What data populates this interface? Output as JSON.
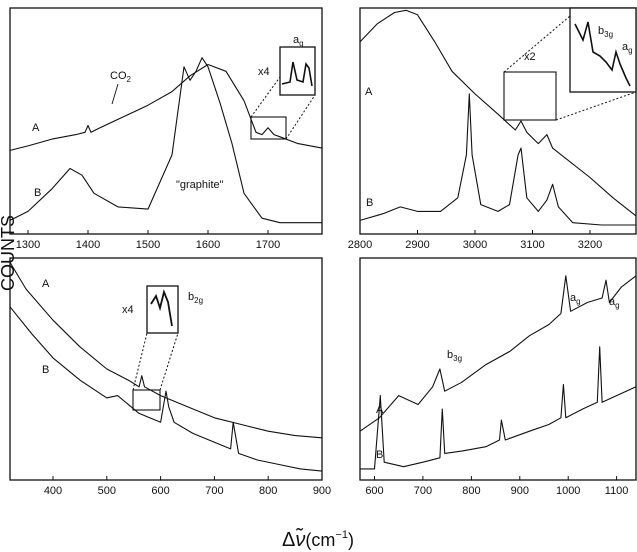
{
  "figure": {
    "ylabel": "COUNTS",
    "xlabel_prefix": "Δ",
    "xlabel_symbol": "ν̃",
    "xlabel_units": "(cm",
    "xlabel_sup": "−1",
    "xlabel_close": ")"
  },
  "chart_data": [
    {
      "type": "line",
      "xlim": [
        1270,
        1790
      ],
      "ticks": [
        1300,
        1400,
        1500,
        1600,
        1700
      ],
      "tick_labels": [
        "1300",
        "1400",
        "1500",
        "1600",
        "1700"
      ],
      "series": [
        {
          "label": "A",
          "x": [
            1270,
            1300,
            1340,
            1380,
            1395,
            1400,
            1405,
            1420,
            1460,
            1500,
            1540,
            1570,
            1600,
            1630,
            1660,
            1680,
            1690,
            1700,
            1710,
            1720,
            1750,
            1790
          ],
          "y": [
            0.37,
            0.39,
            0.42,
            0.44,
            0.45,
            0.48,
            0.45,
            0.47,
            0.52,
            0.57,
            0.63,
            0.7,
            0.75,
            0.72,
            0.59,
            0.45,
            0.44,
            0.47,
            0.44,
            0.43,
            0.4,
            0.38
          ]
        },
        {
          "label": "B",
          "x": [
            1270,
            1300,
            1340,
            1370,
            1390,
            1410,
            1450,
            1500,
            1540,
            1560,
            1570,
            1580,
            1590,
            1600,
            1620,
            1640,
            1660,
            1690,
            1720,
            1790
          ],
          "y": [
            0.06,
            0.1,
            0.2,
            0.29,
            0.26,
            0.18,
            0.12,
            0.11,
            0.35,
            0.74,
            0.68,
            0.72,
            0.78,
            0.74,
            0.58,
            0.4,
            0.18,
            0.07,
            0.05,
            0.05
          ]
        }
      ],
      "annotations": [
        {
          "text": "CO",
          "sub": "2"
        },
        {
          "text": "x4"
        },
        {
          "text": "a",
          "sub": "g"
        },
        {
          "text": "\"graphite\""
        }
      ]
    },
    {
      "type": "line",
      "xlim": [
        2800,
        3280
      ],
      "ticks": [
        2800,
        2900,
        3000,
        3100,
        3200
      ],
      "tick_labels": [
        "2800",
        "2900",
        "3000",
        "3100",
        "3200"
      ],
      "series": [
        {
          "label": "A",
          "x": [
            2800,
            2830,
            2860,
            2880,
            2900,
            2930,
            2960,
            3000,
            3040,
            3070,
            3080,
            3090,
            3110,
            3125,
            3135,
            3150,
            3200,
            3240,
            3280
          ],
          "y": [
            0.85,
            0.93,
            0.98,
            0.99,
            0.97,
            0.85,
            0.72,
            0.62,
            0.53,
            0.46,
            0.5,
            0.45,
            0.4,
            0.44,
            0.38,
            0.35,
            0.25,
            0.16,
            0.08
          ]
        },
        {
          "label": "B",
          "x": [
            2800,
            2840,
            2870,
            2900,
            2940,
            2970,
            2985,
            2990,
            2995,
            3010,
            3040,
            3060,
            3075,
            3080,
            3090,
            3110,
            3125,
            3135,
            3145,
            3170,
            3220,
            3280
          ],
          "y": [
            0.06,
            0.09,
            0.12,
            0.1,
            0.1,
            0.16,
            0.35,
            0.62,
            0.35,
            0.13,
            0.1,
            0.13,
            0.35,
            0.38,
            0.16,
            0.1,
            0.15,
            0.22,
            0.12,
            0.05,
            0.04,
            0.04
          ]
        }
      ],
      "annotations": [
        {
          "text": "x2"
        },
        {
          "text": "b",
          "sub": "3g"
        },
        {
          "text": "a",
          "sub": "g"
        }
      ]
    },
    {
      "type": "line",
      "xlim": [
        320,
        900
      ],
      "ticks": [
        400,
        500,
        600,
        700,
        800,
        900
      ],
      "tick_labels": [
        "400",
        "500",
        "600",
        "700",
        "800",
        "900"
      ],
      "series": [
        {
          "label": "A",
          "x": [
            320,
            350,
            400,
            450,
            500,
            540,
            560,
            565,
            570,
            600,
            650,
            700,
            750,
            800,
            850,
            900
          ],
          "y": [
            0.98,
            0.86,
            0.72,
            0.6,
            0.5,
            0.45,
            0.42,
            0.47,
            0.42,
            0.38,
            0.33,
            0.28,
            0.25,
            0.22,
            0.2,
            0.19
          ]
        },
        {
          "label": "B",
          "x": [
            320,
            360,
            400,
            450,
            500,
            520,
            560,
            600,
            610,
            615,
            625,
            660,
            700,
            730,
            735,
            745,
            780,
            820,
            860,
            900
          ],
          "y": [
            0.78,
            0.66,
            0.55,
            0.45,
            0.37,
            0.38,
            0.3,
            0.26,
            0.4,
            0.33,
            0.26,
            0.21,
            0.17,
            0.14,
            0.26,
            0.12,
            0.09,
            0.07,
            0.05,
            0.04
          ]
        }
      ],
      "annotations": [
        {
          "text": "x4"
        },
        {
          "text": "b",
          "sub": "2g"
        }
      ]
    },
    {
      "type": "line",
      "xlim": [
        570,
        1140
      ],
      "ticks": [
        600,
        700,
        800,
        900,
        1000,
        1100
      ],
      "tick_labels": [
        "600",
        "700",
        "800",
        "900",
        "1000",
        "1100"
      ],
      "series": [
        {
          "label": "A",
          "x": [
            570,
            610,
            650,
            690,
            720,
            735,
            745,
            780,
            830,
            880,
            920,
            960,
            985,
            995,
            1005,
            1040,
            1070,
            1078,
            1085,
            1110,
            1140
          ],
          "y": [
            0.22,
            0.28,
            0.38,
            0.34,
            0.42,
            0.5,
            0.4,
            0.44,
            0.52,
            0.58,
            0.65,
            0.7,
            0.75,
            0.92,
            0.76,
            0.8,
            0.82,
            0.9,
            0.8,
            0.87,
            0.92
          ]
        },
        {
          "label": "B",
          "x": [
            570,
            600,
            612,
            620,
            660,
            700,
            735,
            740,
            745,
            780,
            830,
            858,
            862,
            870,
            920,
            960,
            985,
            990,
            995,
            1030,
            1060,
            1065,
            1070,
            1100,
            1140
          ],
          "y": [
            0.05,
            0.05,
            0.38,
            0.08,
            0.06,
            0.08,
            0.1,
            0.32,
            0.12,
            0.13,
            0.15,
            0.18,
            0.27,
            0.18,
            0.22,
            0.25,
            0.28,
            0.43,
            0.28,
            0.32,
            0.35,
            0.6,
            0.35,
            0.38,
            0.42
          ]
        }
      ],
      "annotations": [
        {
          "text": "b",
          "sub": "3g"
        },
        {
          "text": "a",
          "sub": "g"
        },
        {
          "text": "a",
          "sub": "g"
        }
      ]
    }
  ]
}
